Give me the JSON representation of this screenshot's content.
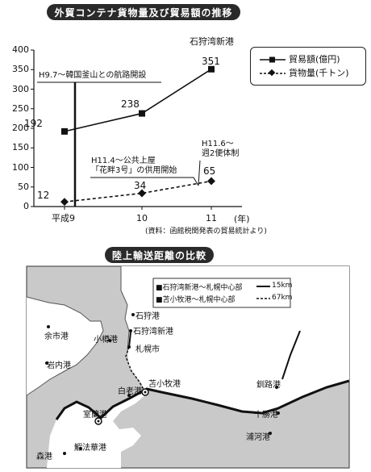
{
  "chart_title": "外貿コンテナ貨物量及び貿易額の推移",
  "chart_data": {
    "type": "line",
    "categories": [
      "平成9",
      "10",
      "11"
    ],
    "x_unit": "(年)",
    "ylim": [
      0,
      400
    ],
    "yticks": [
      "0",
      "50",
      "100",
      "150",
      "200",
      "250",
      "300",
      "350",
      "400"
    ],
    "subtitle": "石狩湾新港",
    "series": [
      {
        "name": "貿易額(億円)",
        "values": [
          192,
          238,
          351
        ],
        "labels": [
          "192",
          "238",
          "351"
        ],
        "style": "solid",
        "marker": "square"
      },
      {
        "name": "貨物量(千トン)",
        "values": [
          12,
          34,
          65
        ],
        "labels": [
          "12",
          "34",
          "65"
        ],
        "style": "dashed",
        "marker": "diamond"
      }
    ],
    "annotations": [
      {
        "text": "H9.7～韓国釜山との航路開設"
      },
      {
        "text": "H11.4～公共上屋",
        "text2": "「花畔3号」の供用開始"
      },
      {
        "text": "H11.6～",
        "text2": "週2便体制"
      }
    ],
    "source": "(資料：函館税関発表の貿易統計より)"
  },
  "map": {
    "title": "陸上輸送距離の比較",
    "legend": [
      {
        "label": "石狩湾新港～札幌中心部",
        "value": "15km",
        "style": "solid"
      },
      {
        "label": "苫小牧港～札幌中心部",
        "value": "67km",
        "style": "dashed"
      }
    ],
    "places": {
      "ishikari": "石狩港",
      "ishikari_shinko": "石狩湾新港",
      "otaru": "小樽港",
      "yoichi": "余市港",
      "iwanai": "岩内港",
      "sapporo": "札幌市",
      "tomakomai": "苫小牧港",
      "shiraoi": "白老港",
      "muroran": "室蘭港",
      "kushiro": "釧路港",
      "tokachi": "十勝港",
      "urakawa": "浦河港",
      "mori": "森港",
      "oshamambe": "鰕法華港"
    }
  }
}
